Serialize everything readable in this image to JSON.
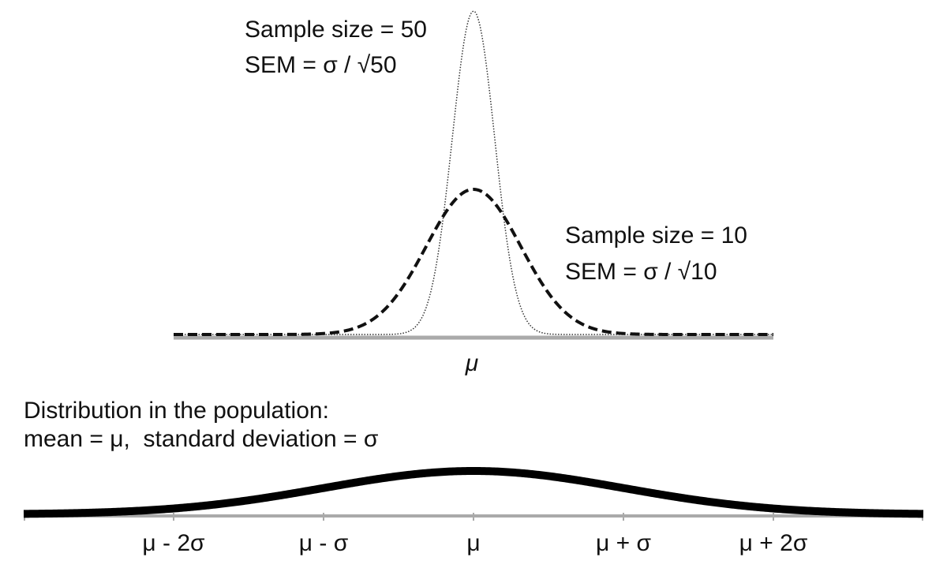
{
  "samples": [
    {
      "label": "Sample size = 50",
      "sem": "SEM = σ / √50"
    },
    {
      "label": "Sample size = 10",
      "sem": "SEM = σ / √10"
    }
  ],
  "top_axis_label": "μ",
  "population": {
    "title": "Distribution in the population:",
    "subtitle": "mean = μ,  standard deviation = σ"
  },
  "axis_labels": [
    "μ - 2σ",
    "μ - σ",
    "μ",
    "μ + σ",
    "μ + 2σ"
  ]
}
